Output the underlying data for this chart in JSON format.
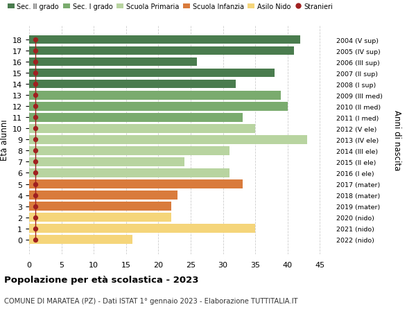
{
  "ages": [
    18,
    17,
    16,
    15,
    14,
    13,
    12,
    11,
    10,
    9,
    8,
    7,
    6,
    5,
    4,
    3,
    2,
    1,
    0
  ],
  "right_labels": [
    "2004 (V sup)",
    "2005 (IV sup)",
    "2006 (III sup)",
    "2007 (II sup)",
    "2008 (I sup)",
    "2009 (III med)",
    "2010 (II med)",
    "2011 (I med)",
    "2012 (V ele)",
    "2013 (IV ele)",
    "2014 (III ele)",
    "2015 (II ele)",
    "2016 (I ele)",
    "2017 (mater)",
    "2018 (mater)",
    "2019 (mater)",
    "2020 (nido)",
    "2021 (nido)",
    "2022 (nido)"
  ],
  "bar_values": [
    42,
    41,
    26,
    38,
    32,
    39,
    40,
    33,
    35,
    43,
    31,
    24,
    31,
    33,
    23,
    22,
    22,
    35,
    16
  ],
  "bar_colors": [
    "#4a7c4e",
    "#4a7c4e",
    "#4a7c4e",
    "#4a7c4e",
    "#4a7c4e",
    "#7aab6e",
    "#7aab6e",
    "#7aab6e",
    "#b8d4a0",
    "#b8d4a0",
    "#b8d4a0",
    "#b8d4a0",
    "#b8d4a0",
    "#d97b3c",
    "#d97b3c",
    "#d97b3c",
    "#f5d57a",
    "#f5d57a",
    "#f5d57a"
  ],
  "stranieri_x": [
    1,
    1,
    1,
    1,
    1,
    1,
    1,
    1,
    1,
    1,
    1,
    1,
    1,
    1,
    1,
    1,
    1,
    1,
    1
  ],
  "stranieri_color": "#a02020",
  "legend_labels": [
    "Sec. II grado",
    "Sec. I grado",
    "Scuola Primaria",
    "Scuola Infanzia",
    "Asilo Nido",
    "Stranieri"
  ],
  "legend_colors": [
    "#4a7c4e",
    "#7aab6e",
    "#b8d4a0",
    "#d97b3c",
    "#f5d57a",
    "#a02020"
  ],
  "ylabel": "Età alunni",
  "right_ylabel": "Anni di nascita",
  "title": "Popolazione per età scolastica - 2023",
  "subtitle": "COMUNE DI MARATEA (PZ) - Dati ISTAT 1° gennaio 2023 - Elaborazione TUTTITALIA.IT",
  "xlim": [
    0,
    47
  ],
  "xticks": [
    0,
    5,
    10,
    15,
    20,
    25,
    30,
    35,
    40,
    45
  ],
  "background_color": "#ffffff",
  "grid_color": "#cccccc"
}
